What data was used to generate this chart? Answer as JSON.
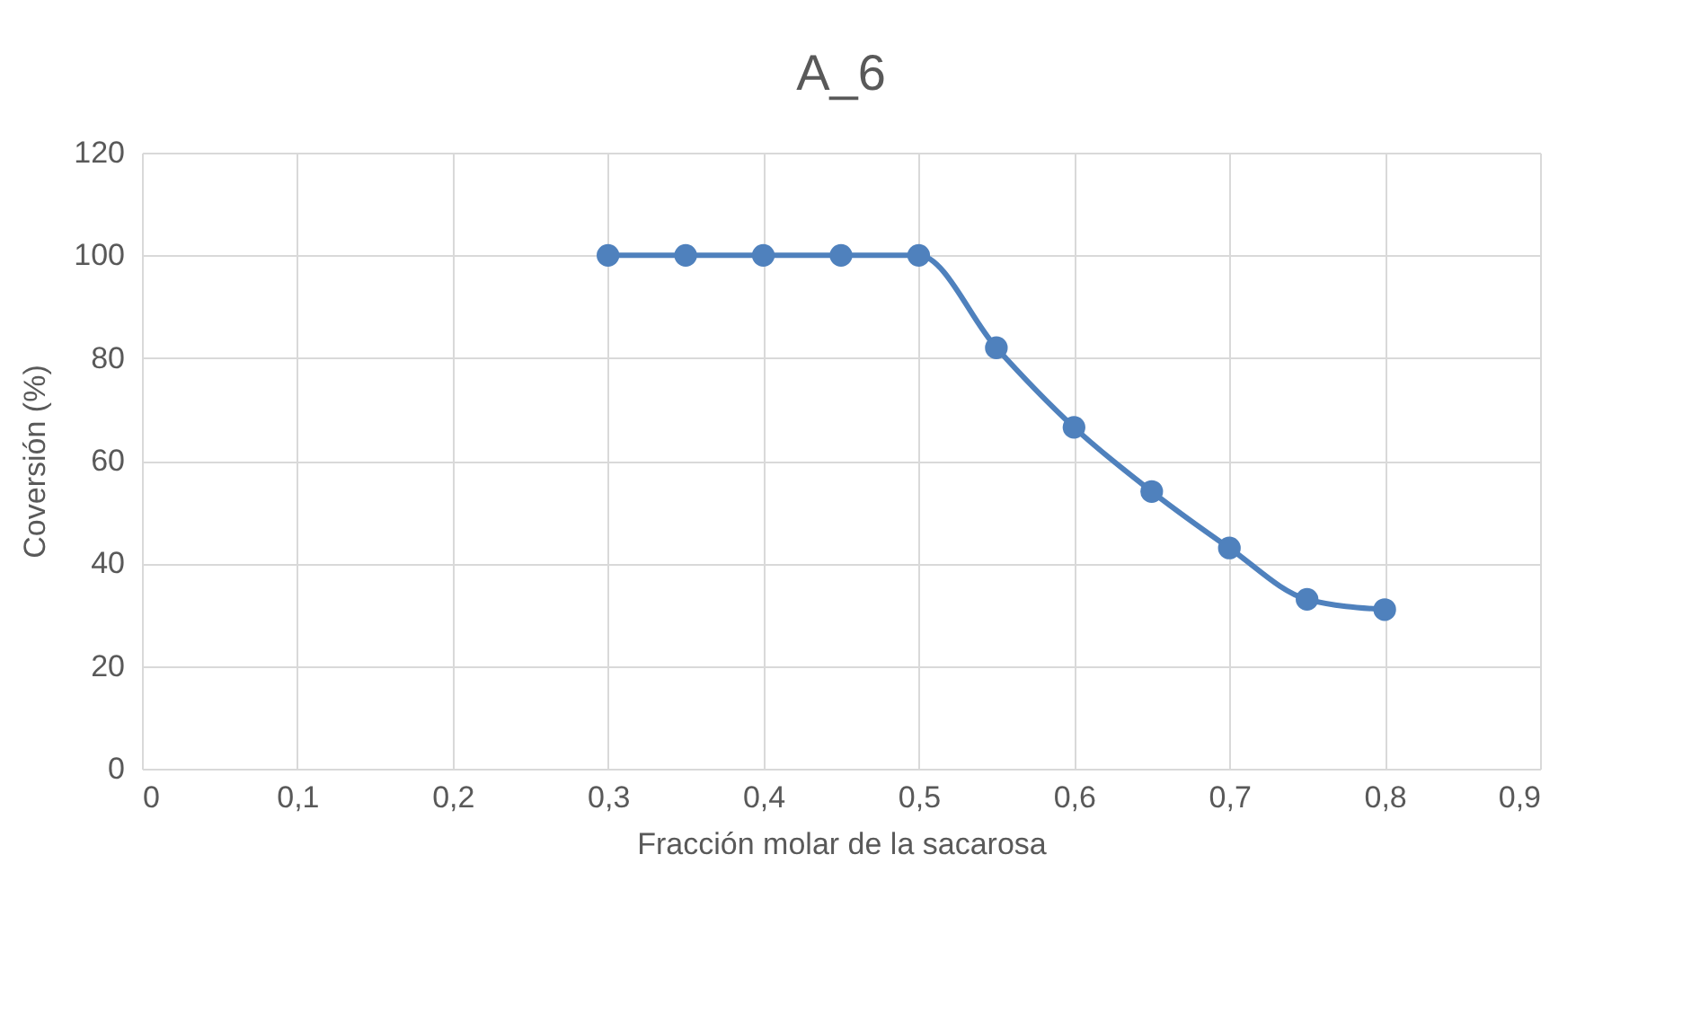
{
  "chart_data": {
    "type": "line",
    "title": "A_6",
    "xlabel": "Fracción molar de la sacarosa",
    "ylabel": "Coversión (%)",
    "x": [
      0.3,
      0.35,
      0.4,
      0.45,
      0.5,
      0.55,
      0.6,
      0.65,
      0.7,
      0.75,
      0.8
    ],
    "series": [
      {
        "color": "#4f81bd",
        "values": [
          100,
          100,
          100,
          100,
          100,
          82,
          66.5,
          54,
          43,
          33,
          31
        ]
      }
    ],
    "xlim": [
      0,
      0.9
    ],
    "xticks": [
      0,
      {
        "value": 0.1,
        "label": "0,1"
      },
      {
        "value": 0.2,
        "label": "0,2"
      },
      {
        "value": 0.3,
        "label": "0,3"
      },
      {
        "value": 0.4,
        "label": "0,4"
      },
      {
        "value": 0.5,
        "label": "0,5"
      },
      {
        "value": 0.6,
        "label": "0,6"
      },
      {
        "value": 0.7,
        "label": "0,7"
      },
      {
        "value": 0.8,
        "label": "0,8"
      },
      {
        "value": 0.9,
        "label": "0,9"
      }
    ],
    "ylim": [
      0,
      120
    ],
    "yticks": [
      0,
      20,
      40,
      60,
      80,
      100,
      120
    ],
    "grid": true,
    "marker": "circle",
    "line_style": "solid"
  }
}
